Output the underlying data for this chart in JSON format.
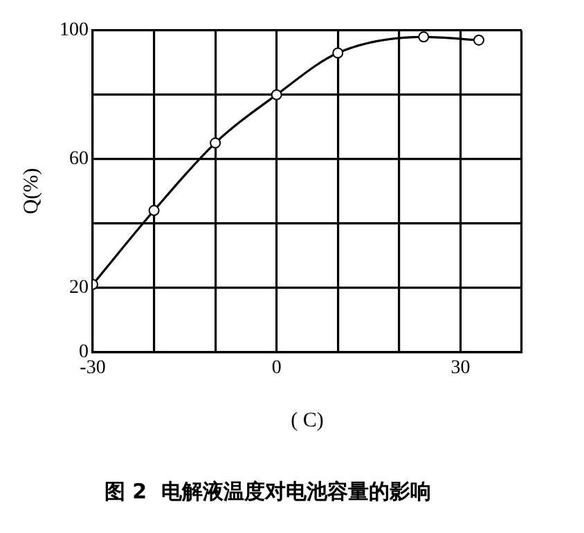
{
  "chart_data": {
    "type": "line",
    "title": "图 2  电解液温度对电池容量的影响",
    "xlabel": "( C)",
    "ylabel": "Q(%)",
    "x": [
      -30,
      -20,
      -10,
      0,
      10,
      24,
      33
    ],
    "series": [
      {
        "color": "#000000",
        "values": [
          21,
          44,
          65,
          80,
          93,
          98,
          97
        ]
      }
    ],
    "xlim": [
      -30,
      40
    ],
    "xticks": [
      -30,
      {
        "value": -20,
        "label": null
      },
      {
        "value": -10,
        "label": null
      },
      0,
      {
        "value": 10,
        "label": null
      },
      {
        "value": 20,
        "label": null
      },
      30,
      {
        "value": 40,
        "label": null
      }
    ],
    "ylim": [
      0,
      100
    ],
    "yticks": [
      0,
      20,
      {
        "value": 40,
        "label": null
      },
      60,
      {
        "value": 80,
        "label": null
      },
      100
    ],
    "grid": true,
    "legend": false,
    "marker": "circle",
    "line_style": "solid"
  }
}
